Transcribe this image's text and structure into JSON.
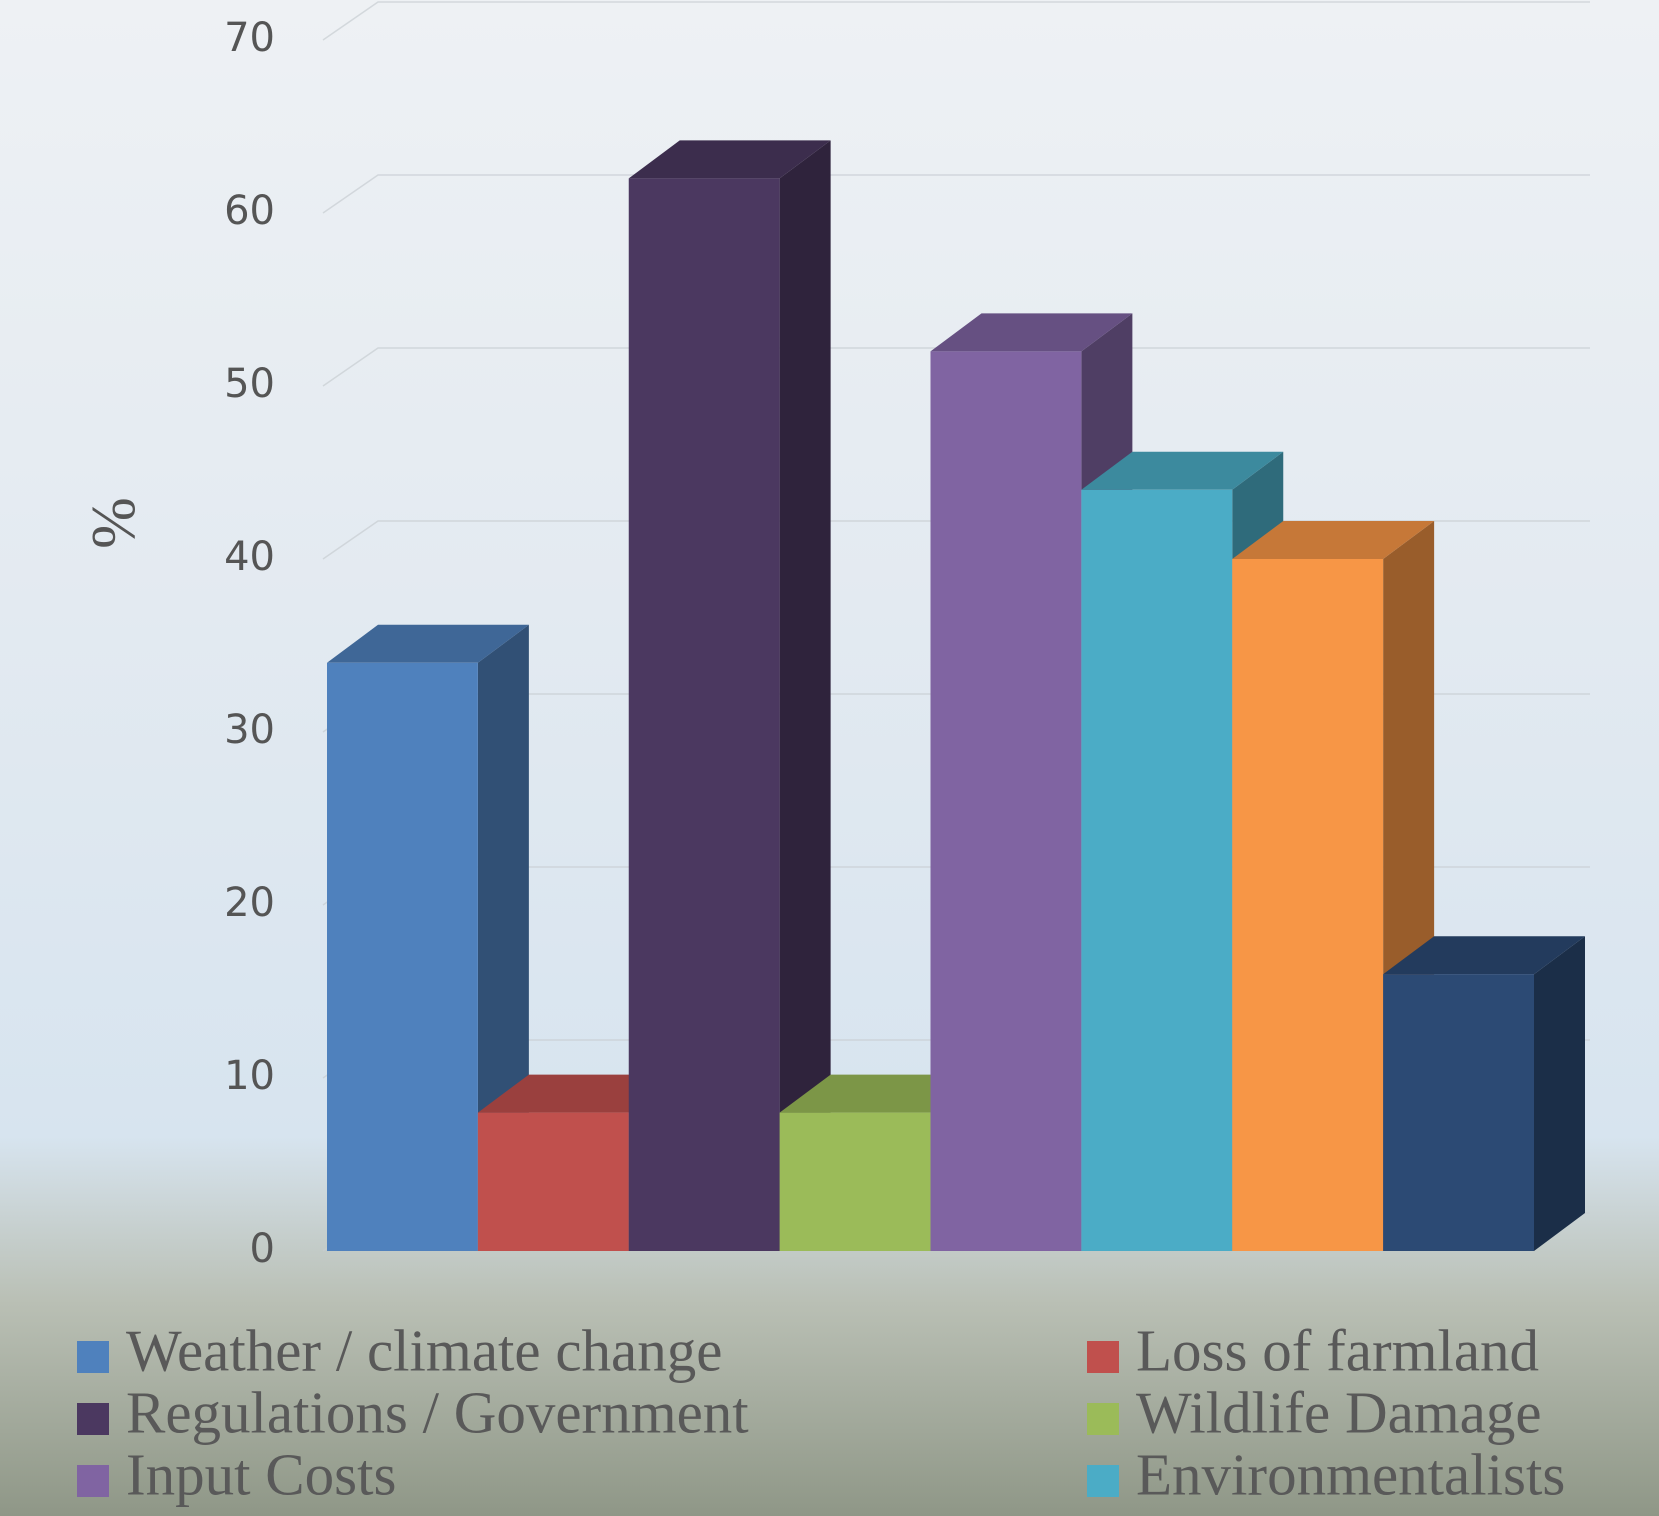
{
  "chart_data": {
    "type": "bar3d",
    "y_label": "%",
    "ylim": [
      0,
      70
    ],
    "yticks": [
      0,
      10,
      20,
      30,
      40,
      50,
      60,
      70
    ],
    "grid": true,
    "series": [
      {
        "name": "Weather / climate change",
        "color": "#4f81bd",
        "values": [
          34
        ]
      },
      {
        "name": "Loss of farmland",
        "color": "#c0504d",
        "values": [
          8
        ]
      },
      {
        "name": "Regulations / Government",
        "color": "#4b3860",
        "values": [
          62
        ]
      },
      {
        "name": "Wildlife Damage",
        "color": "#9bbb59",
        "values": [
          8
        ]
      },
      {
        "name": "Input Costs",
        "color": "#8064a2",
        "values": [
          52
        ]
      },
      {
        "name": "Environmentalists",
        "color": "#4bacc6",
        "values": [
          44
        ]
      },
      {
        "color": "#f79646",
        "values": [
          40
        ]
      },
      {
        "color": "#2c4a74",
        "values": [
          16
        ]
      }
    ]
  }
}
